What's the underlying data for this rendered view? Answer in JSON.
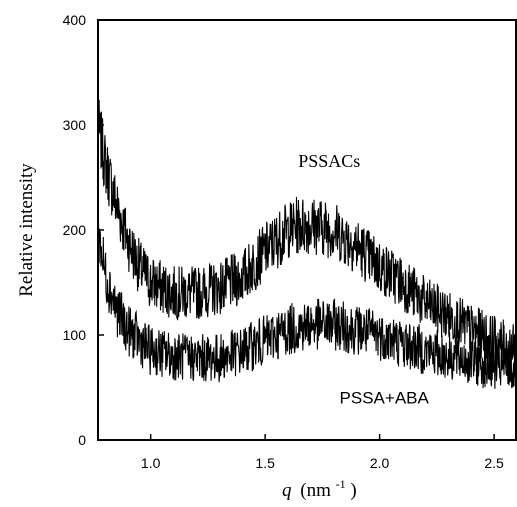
{
  "chart_data": {
    "type": "line",
    "title": "",
    "xlabel": {
      "symbol": "q",
      "unit": "(nm",
      "exponent": "-1",
      "close": ")"
    },
    "ylabel": "Relative intensity",
    "xlim": [
      0.77,
      2.6
    ],
    "ylim": [
      0,
      400
    ],
    "xticks": [
      1.0,
      1.5,
      2.0,
      2.5
    ],
    "xtick_labels": [
      "1.0",
      "1.5",
      "2.0",
      "2.5"
    ],
    "yticks": [
      0,
      100,
      200,
      300,
      400
    ],
    "ytick_labels": [
      "0",
      "100",
      "200",
      "300",
      "400"
    ],
    "grid": false,
    "legend": "none",
    "line_color": "#000000",
    "noise_amplitude": 28,
    "series": [
      {
        "name": "PSSACs",
        "x": [
          0.77,
          0.8,
          0.85,
          0.9,
          0.95,
          1.0,
          1.1,
          1.2,
          1.3,
          1.4,
          1.5,
          1.6,
          1.65,
          1.7,
          1.8,
          1.9,
          2.0,
          2.1,
          2.2,
          2.3,
          2.4,
          2.5,
          2.6
        ],
        "y": [
          300,
          265,
          225,
          190,
          165,
          150,
          140,
          140,
          145,
          155,
          180,
          200,
          205,
          205,
          200,
          185,
          165,
          150,
          130,
          118,
          105,
          95,
          85
        ]
      },
      {
        "name": "PSSA+ABA",
        "x": [
          0.77,
          0.8,
          0.85,
          0.9,
          0.95,
          1.0,
          1.1,
          1.2,
          1.3,
          1.4,
          1.5,
          1.6,
          1.7,
          1.8,
          1.9,
          2.0,
          2.1,
          2.2,
          2.3,
          2.4,
          2.5,
          2.6
        ],
        "y": [
          200,
          160,
          125,
          105,
          95,
          85,
          80,
          78,
          78,
          85,
          95,
          105,
          110,
          110,
          105,
          100,
          92,
          85,
          80,
          75,
          70,
          68
        ]
      }
    ],
    "annotations": [
      {
        "text": "PSSACs",
        "x": 1.78,
        "y": 260,
        "style": "serif"
      },
      {
        "text": "PSSA+ABA",
        "x": 2.02,
        "y": 35,
        "style": "sans"
      }
    ]
  }
}
